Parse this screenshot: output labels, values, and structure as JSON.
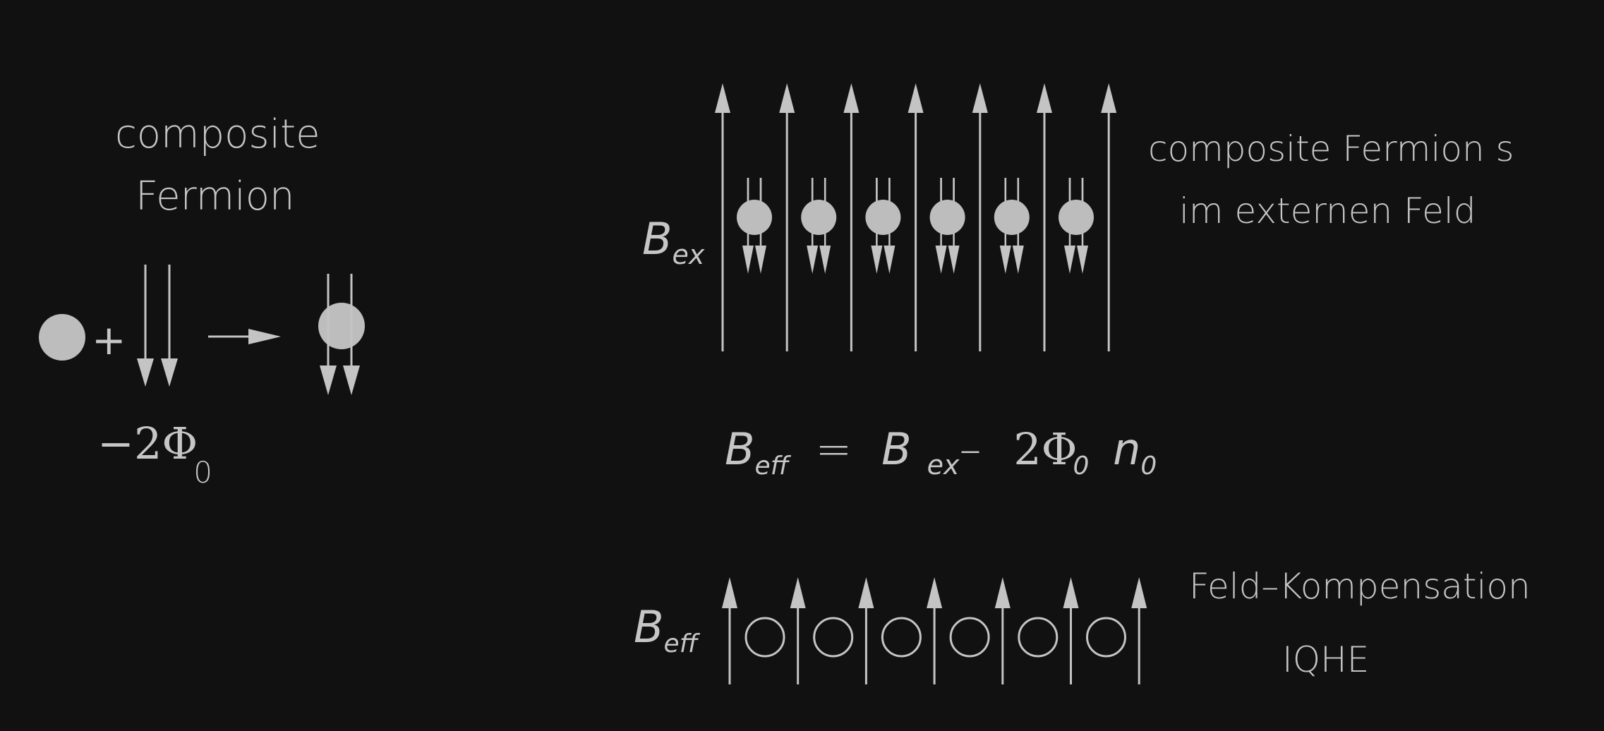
{
  "left": {
    "title_line1": "composite",
    "title_line2": "Fermion",
    "plus": "+",
    "flux": {
      "main": "−2Φ",
      "sub": "0"
    }
  },
  "top": {
    "field_label": {
      "main": "B",
      "sub": "ex"
    },
    "caption_line1": "composite Fermion s",
    "caption_line2": "im externen Feld",
    "field_line_count": 7,
    "particle_count": 6
  },
  "equation": {
    "lhs": {
      "main": "B",
      "sub": "eff"
    },
    "eq": "=",
    "rhs_b": {
      "main": "B",
      "sub": "ex"
    },
    "minus": "–",
    "flux": {
      "main": "2Φ",
      "sub": "0"
    },
    "density": {
      "main": "n",
      "sub": "0"
    }
  },
  "bottom": {
    "field_label": {
      "main": "B",
      "sub": "eff"
    },
    "caption_line1": "Feld–Kompensation",
    "caption_line2": "IQHE",
    "field_line_count": 7,
    "particle_count": 6
  },
  "colors": {
    "background": "#111111",
    "foreground": "#c4c4c4",
    "particle": "#bdbdbd"
  }
}
